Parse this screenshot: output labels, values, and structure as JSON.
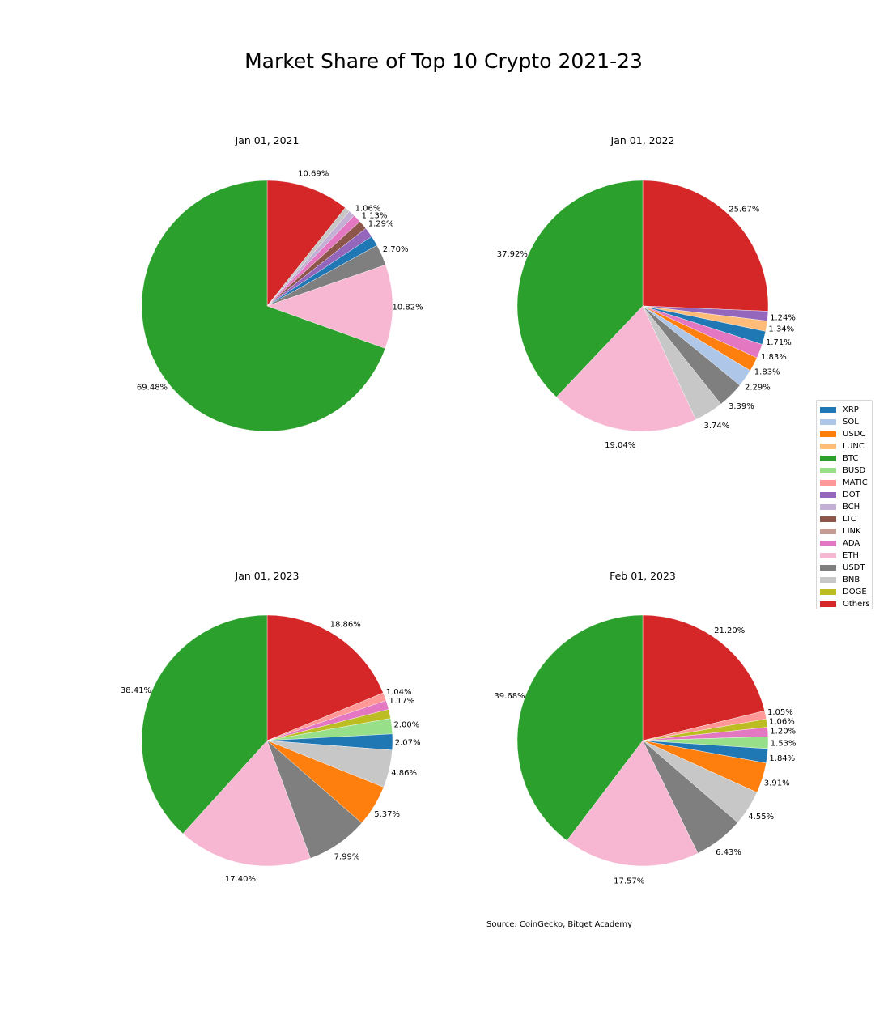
{
  "title": "Market Share of Top 10 Crypto 2021-23",
  "source": "Source: CoinGecko, Bitget Academy",
  "colors": {
    "XRP": "#1f77b4",
    "SOL": "#aec7e8",
    "USDC": "#ff7f0e",
    "LUNC": "#ffbb78",
    "BTC": "#2ca02c",
    "BUSD": "#98df8a",
    "MATIC": "#ff9896",
    "DOT": "#9467bd",
    "BCH": "#c5b0d5",
    "LTC": "#8c564b",
    "LINK": "#c49c94",
    "ADA": "#e377c2",
    "ETH": "#f7b6d2",
    "USDT": "#7f7f7f",
    "BNB": "#c7c7c7",
    "DOGE": "#bcbd22",
    "Others": "#d62728"
  },
  "legend": [
    "XRP",
    "SOL",
    "USDC",
    "LUNC",
    "BTC",
    "BUSD",
    "MATIC",
    "DOT",
    "BCH",
    "LTC",
    "LINK",
    "ADA",
    "ETH",
    "USDT",
    "BNB",
    "DOGE",
    "Others"
  ],
  "chart_data": [
    {
      "type": "pie",
      "title": "Jan 01, 2021",
      "slices": [
        {
          "label": "Others",
          "value": 10.69,
          "text": "10.69%"
        },
        {
          "label": "BNB",
          "value": 0.7,
          "text": ""
        },
        {
          "label": "BCH",
          "value": 0.8,
          "text": ""
        },
        {
          "label": "ADA",
          "value": 1.06,
          "text": "1.06%"
        },
        {
          "label": "LTC",
          "value": 1.13,
          "text": "1.13%"
        },
        {
          "label": "DOT",
          "value": 1.29,
          "text": "1.29%"
        },
        {
          "label": "XRP",
          "value": 1.3,
          "text": ""
        },
        {
          "label": "USDT",
          "value": 2.7,
          "text": "2.70%"
        },
        {
          "label": "ETH",
          "value": 10.82,
          "text": "10.82%"
        },
        {
          "label": "BTC",
          "value": 69.48,
          "text": "69.48%"
        }
      ]
    },
    {
      "type": "pie",
      "title": "Jan 01, 2022",
      "slices": [
        {
          "label": "Others",
          "value": 25.67,
          "text": "25.67%"
        },
        {
          "label": "DOT",
          "value": 1.24,
          "text": "1.24%"
        },
        {
          "label": "LUNC",
          "value": 1.34,
          "text": "1.34%"
        },
        {
          "label": "XRP",
          "value": 1.71,
          "text": "1.71%"
        },
        {
          "label": "ADA",
          "value": 1.83,
          "text": "1.83%"
        },
        {
          "label": "USDC",
          "value": 1.83,
          "text": "1.83%"
        },
        {
          "label": "SOL",
          "value": 2.29,
          "text": "2.29%"
        },
        {
          "label": "USDT",
          "value": 3.39,
          "text": "3.39%"
        },
        {
          "label": "BNB",
          "value": 3.74,
          "text": "3.74%"
        },
        {
          "label": "ETH",
          "value": 19.04,
          "text": "19.04%"
        },
        {
          "label": "BTC",
          "value": 37.92,
          "text": "37.92%"
        }
      ]
    },
    {
      "type": "pie",
      "title": "Jan 01, 2023",
      "slices": [
        {
          "label": "Others",
          "value": 18.86,
          "text": "18.86%"
        },
        {
          "label": "MATIC",
          "value": 1.04,
          "text": "1.04%"
        },
        {
          "label": "ADA",
          "value": 1.17,
          "text": "1.17%"
        },
        {
          "label": "DOGE",
          "value": 1.17,
          "text": ""
        },
        {
          "label": "BUSD",
          "value": 2.0,
          "text": "2.00%"
        },
        {
          "label": "XRP",
          "value": 2.07,
          "text": "2.07%"
        },
        {
          "label": "BNB",
          "value": 4.86,
          "text": "4.86%"
        },
        {
          "label": "USDC",
          "value": 5.37,
          "text": "5.37%"
        },
        {
          "label": "USDT",
          "value": 7.99,
          "text": "7.99%"
        },
        {
          "label": "ETH",
          "value": 17.4,
          "text": "17.40%"
        },
        {
          "label": "BTC",
          "value": 38.41,
          "text": "38.41%"
        }
      ]
    },
    {
      "type": "pie",
      "title": "Feb 01, 2023",
      "slices": [
        {
          "label": "Others",
          "value": 21.2,
          "text": "21.20%"
        },
        {
          "label": "MATIC",
          "value": 1.05,
          "text": "1.05%"
        },
        {
          "label": "DOGE",
          "value": 1.06,
          "text": "1.06%"
        },
        {
          "label": "ADA",
          "value": 1.2,
          "text": "1.20%"
        },
        {
          "label": "BUSD",
          "value": 1.53,
          "text": "1.53%"
        },
        {
          "label": "XRP",
          "value": 1.84,
          "text": "1.84%"
        },
        {
          "label": "USDC",
          "value": 3.91,
          "text": "3.91%"
        },
        {
          "label": "BNB",
          "value": 4.55,
          "text": "4.55%"
        },
        {
          "label": "USDT",
          "value": 6.43,
          "text": "6.43%"
        },
        {
          "label": "ETH",
          "value": 17.57,
          "text": "17.57%"
        },
        {
          "label": "BTC",
          "value": 39.68,
          "text": "39.68%"
        }
      ]
    }
  ]
}
